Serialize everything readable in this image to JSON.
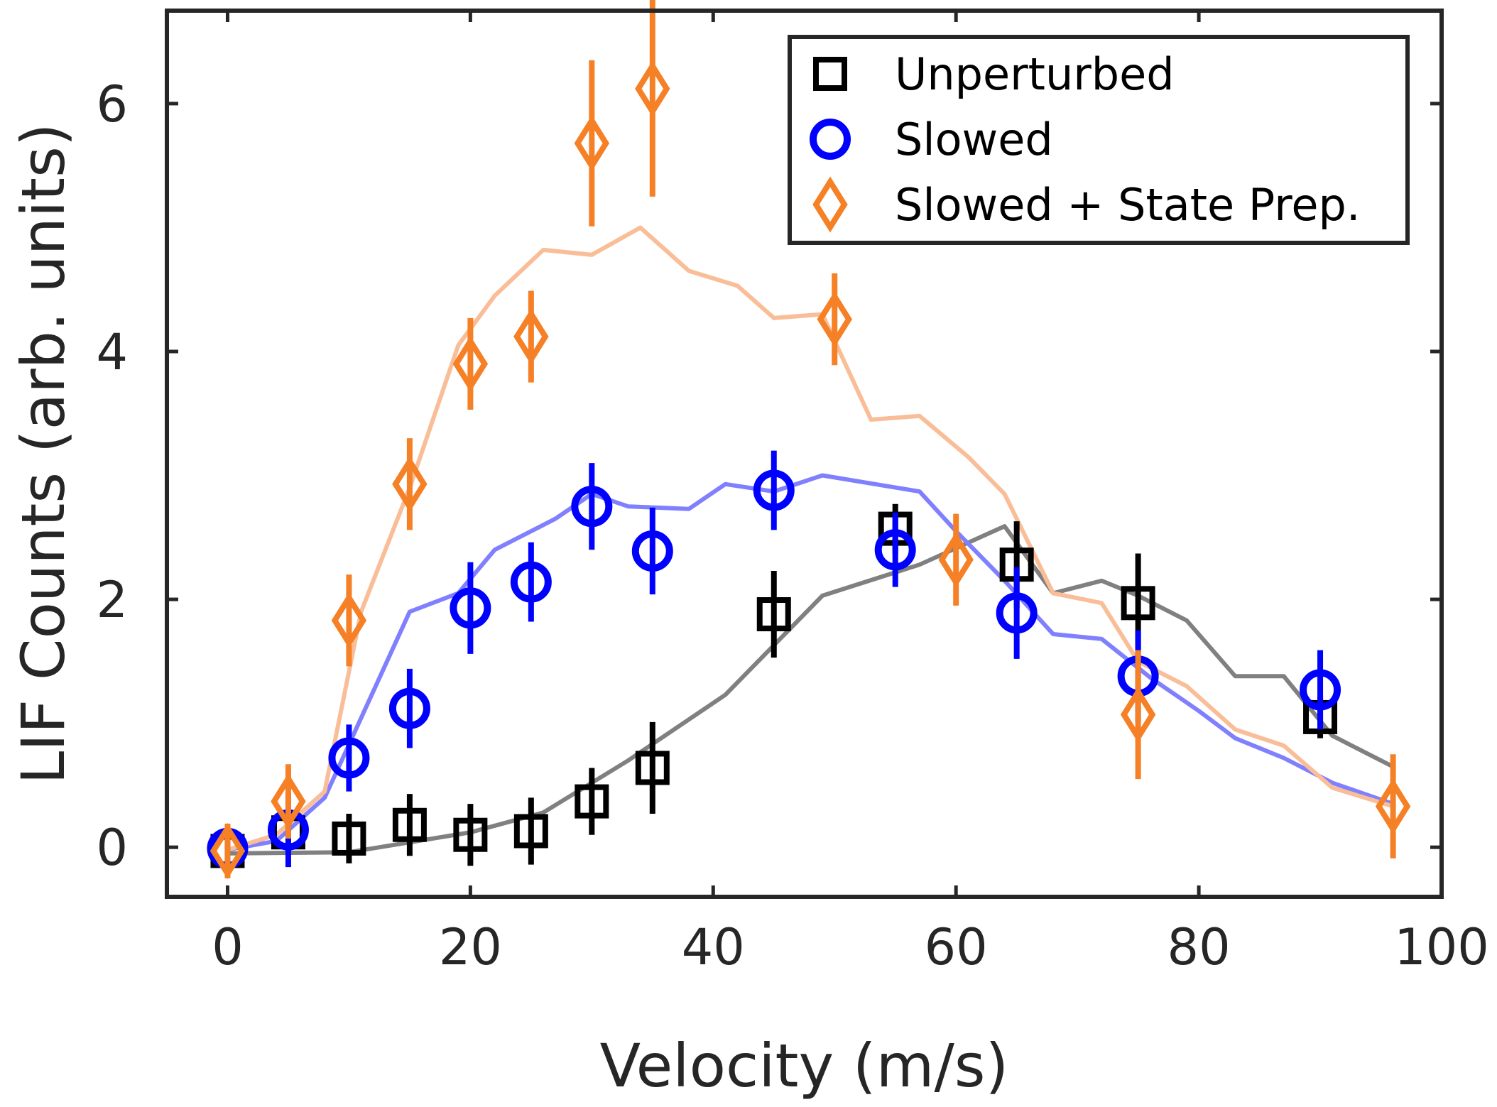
{
  "chart_data": {
    "type": "scatter",
    "xlabel": "Velocity (m/s)",
    "ylabel": "LIF Counts (arb. units)",
    "xlim": [
      -5,
      100
    ],
    "ylim": [
      -0.4,
      6.75
    ],
    "xticks": [
      0,
      20,
      40,
      60,
      80,
      100
    ],
    "yticks": [
      0,
      2,
      4,
      6
    ],
    "xtick_labels": [
      "0",
      "20",
      "40",
      "60",
      "80",
      "100"
    ],
    "ytick_labels": [
      "0",
      "2",
      "4",
      "6"
    ],
    "legend_position": "top-right",
    "series": [
      {
        "name": "Unperturbed",
        "marker": "square",
        "color": "#000000",
        "curve_color": "#808080",
        "points": [
          {
            "x": 0,
            "y": -0.03,
            "err": 0.1
          },
          {
            "x": 5,
            "y": 0.12,
            "err": 0.15
          },
          {
            "x": 10,
            "y": 0.07,
            "err": 0.2
          },
          {
            "x": 15,
            "y": 0.18,
            "err": 0.25
          },
          {
            "x": 20,
            "y": 0.1,
            "err": 0.25
          },
          {
            "x": 25,
            "y": 0.13,
            "err": 0.27
          },
          {
            "x": 30,
            "y": 0.37,
            "err": 0.27
          },
          {
            "x": 35,
            "y": 0.64,
            "err": 0.37
          },
          {
            "x": 45,
            "y": 1.88,
            "err": 0.35
          },
          {
            "x": 55,
            "y": 2.57,
            "err": 0.2
          },
          {
            "x": 65,
            "y": 2.28,
            "err": 0.35
          },
          {
            "x": 75,
            "y": 1.97,
            "err": 0.4
          },
          {
            "x": 90,
            "y": 1.05,
            "err": 0.17
          }
        ],
        "curve": {
          "x": [
            0,
            10,
            20,
            26,
            33,
            41,
            49,
            57,
            64,
            68,
            72,
            75,
            79,
            83,
            87,
            91,
            96
          ],
          "y": [
            -0.05,
            -0.04,
            0.12,
            0.28,
            0.7,
            1.23,
            2.03,
            2.28,
            2.59,
            2.05,
            2.15,
            2.03,
            1.83,
            1.38,
            1.38,
            0.9,
            0.65
          ]
        }
      },
      {
        "name": "Slowed",
        "marker": "circle",
        "color": "#0000ff",
        "curve_color": "#8080ff",
        "points": [
          {
            "x": 0,
            "y": -0.01,
            "err": 0.12
          },
          {
            "x": 5,
            "y": 0.14,
            "err": 0.3
          },
          {
            "x": 10,
            "y": 0.72,
            "err": 0.27
          },
          {
            "x": 15,
            "y": 1.12,
            "err": 0.32
          },
          {
            "x": 20,
            "y": 1.93,
            "err": 0.37
          },
          {
            "x": 25,
            "y": 2.14,
            "err": 0.32
          },
          {
            "x": 30,
            "y": 2.75,
            "err": 0.35
          },
          {
            "x": 35,
            "y": 2.39,
            "err": 0.35
          },
          {
            "x": 45,
            "y": 2.88,
            "err": 0.32
          },
          {
            "x": 55,
            "y": 2.4,
            "err": 0.3
          },
          {
            "x": 65,
            "y": 1.89,
            "err": 0.37
          },
          {
            "x": 75,
            "y": 1.38,
            "err": 0.37
          },
          {
            "x": 90,
            "y": 1.27,
            "err": 0.32
          }
        ],
        "curve": {
          "x": [
            0,
            4,
            8,
            15,
            19,
            22,
            27,
            30,
            33,
            38,
            41,
            45,
            49,
            57,
            60,
            64,
            68,
            72,
            76,
            80,
            83,
            87,
            91,
            96
          ],
          "y": [
            -0.02,
            0.05,
            0.4,
            1.9,
            2.05,
            2.4,
            2.65,
            2.85,
            2.75,
            2.73,
            2.93,
            2.87,
            3.0,
            2.87,
            2.55,
            2.15,
            1.72,
            1.68,
            1.37,
            1.1,
            0.88,
            0.72,
            0.52,
            0.35
          ]
        }
      },
      {
        "name": "Slowed + State Prep.",
        "marker": "diamond",
        "color": "#f58025",
        "curve_color": "#f9be98",
        "points": [
          {
            "x": 0,
            "y": -0.03,
            "err": 0.22
          },
          {
            "x": 5,
            "y": 0.37,
            "err": 0.3
          },
          {
            "x": 10,
            "y": 1.83,
            "err": 0.37
          },
          {
            "x": 15,
            "y": 2.93,
            "err": 0.37
          },
          {
            "x": 20,
            "y": 3.9,
            "err": 0.37
          },
          {
            "x": 25,
            "y": 4.12,
            "err": 0.37
          },
          {
            "x": 30,
            "y": 5.68,
            "err": 0.67
          },
          {
            "x": 35,
            "y": 6.12,
            "err": 0.87
          },
          {
            "x": 50,
            "y": 4.26,
            "err": 0.37
          },
          {
            "x": 60,
            "y": 2.32,
            "err": 0.37
          },
          {
            "x": 75,
            "y": 1.07,
            "err": 0.52
          },
          {
            "x": 96,
            "y": 0.33,
            "err": 0.42
          }
        ],
        "curve": {
          "x": [
            0,
            4,
            8,
            11,
            15,
            19,
            22,
            26,
            30,
            34,
            38,
            42,
            45,
            49,
            53,
            57,
            61,
            64,
            68,
            72,
            75,
            79,
            83,
            87,
            91,
            96
          ],
          "y": [
            -0.02,
            0.1,
            0.45,
            1.9,
            2.9,
            4.05,
            4.45,
            4.82,
            4.78,
            5.0,
            4.65,
            4.53,
            4.27,
            4.3,
            3.45,
            3.48,
            3.15,
            2.85,
            2.05,
            1.97,
            1.5,
            1.3,
            0.95,
            0.82,
            0.48,
            0.33
          ]
        }
      }
    ]
  }
}
